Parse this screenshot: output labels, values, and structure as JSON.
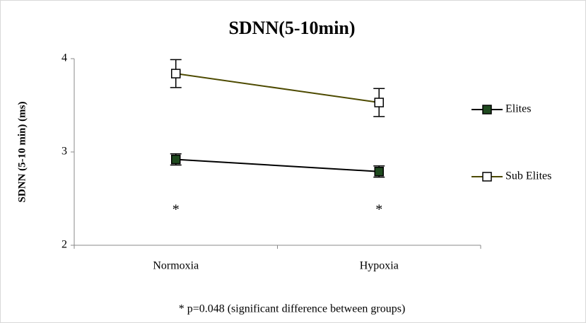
{
  "chart_data": {
    "type": "line",
    "title": "SDNN(5-10min)",
    "y_label": "SDNN (5-10 min) (ms)",
    "categories": [
      "Normoxia",
      "Hypoxia"
    ],
    "series": [
      {
        "name": "Elites",
        "color": "#000000",
        "marker_fill": "#1f4a1f",
        "values": [
          2.92,
          2.79
        ],
        "errors": [
          0.06,
          0.06
        ]
      },
      {
        "name": "Sub Elites",
        "color": "#4d4a00",
        "marker_fill": "#ffffff",
        "values": [
          3.84,
          3.53
        ],
        "errors": [
          0.15,
          0.15
        ]
      }
    ],
    "ylim": [
      2,
      4
    ],
    "yticks": [
      2,
      3,
      4
    ],
    "annotations": [
      "*",
      "*"
    ],
    "note": "* p=0.048 (significant difference between groups)",
    "legend": "right"
  }
}
